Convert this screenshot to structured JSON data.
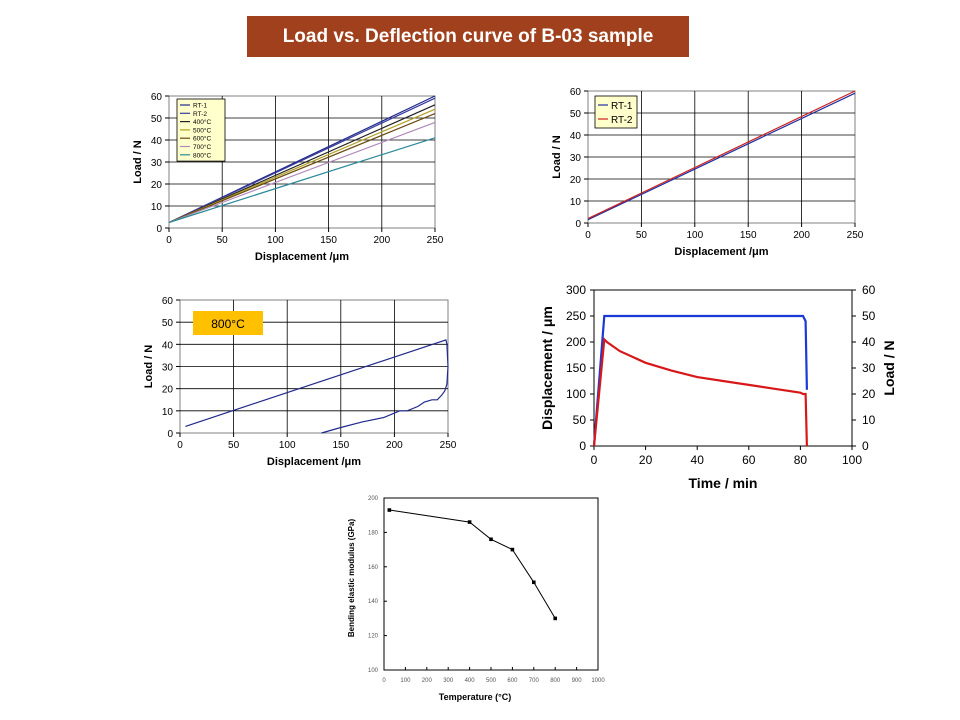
{
  "title": "Load vs. Deflection curve of B-03 sample",
  "chart_data": [
    {
      "id": "c1",
      "type": "line",
      "xlabel": "Displacement /μm",
      "ylabel": "Load / N",
      "xlim": [
        0,
        250
      ],
      "ylim": [
        0,
        60
      ],
      "xticks": [
        "0",
        "50",
        "100",
        "150",
        "200",
        "250"
      ],
      "yticks": [
        "0",
        "10",
        "20",
        "30",
        "40",
        "50",
        "60"
      ],
      "grid": true,
      "legend_position": "top-left",
      "series": [
        {
          "name": "RT-1",
          "color": "#1f2a8c",
          "x": [
            0,
            250
          ],
          "y": [
            2.5,
            60
          ]
        },
        {
          "name": "RT-2",
          "color": "#3b3b9c",
          "x": [
            0,
            250
          ],
          "y": [
            2.5,
            59
          ]
        },
        {
          "name": "400°C",
          "color": "#222222",
          "x": [
            0,
            250
          ],
          "y": [
            2.5,
            56
          ]
        },
        {
          "name": "500°C",
          "color": "#b0a020",
          "x": [
            0,
            250
          ],
          "y": [
            2.5,
            54
          ]
        },
        {
          "name": "600°C",
          "color": "#6b4a10",
          "x": [
            0,
            250
          ],
          "y": [
            2.5,
            52
          ]
        },
        {
          "name": "700°C",
          "color": "#b08ab8",
          "x": [
            0,
            250
          ],
          "y": [
            2.5,
            48
          ]
        },
        {
          "name": "800°C",
          "color": "#2a8a9a",
          "x": [
            0,
            250
          ],
          "y": [
            2.5,
            41
          ]
        }
      ]
    },
    {
      "id": "c2",
      "type": "line",
      "xlabel": "Displacement /μm",
      "ylabel": "Load / N",
      "xlim": [
        0,
        250
      ],
      "ylim": [
        0,
        60
      ],
      "xticks": [
        "0",
        "50",
        "100",
        "150",
        "200",
        "250"
      ],
      "yticks": [
        "0",
        "10",
        "20",
        "30",
        "40",
        "50",
        "60"
      ],
      "grid": true,
      "legend_position": "top-left",
      "series": [
        {
          "name": "RT-1",
          "color": "#2030a0",
          "x": [
            0,
            250
          ],
          "y": [
            1.5,
            59
          ]
        },
        {
          "name": "RT-2",
          "color": "#cc2020",
          "x": [
            0,
            250
          ],
          "y": [
            2,
            60
          ]
        }
      ]
    },
    {
      "id": "c3",
      "type": "line",
      "xlabel": "Displacement /μm",
      "ylabel": "Load / N",
      "xlim": [
        0,
        250
      ],
      "ylim": [
        0,
        60
      ],
      "xticks": [
        "0",
        "50",
        "100",
        "150",
        "200",
        "250"
      ],
      "yticks": [
        "0",
        "10",
        "20",
        "30",
        "40",
        "50",
        "60"
      ],
      "grid": true,
      "annotation": "800°C",
      "series": [
        {
          "color": "#1f2a8c",
          "x": [
            5,
            248,
            249,
            250,
            249,
            247,
            244,
            240,
            235,
            228,
            222,
            212,
            205,
            190,
            170,
            150,
            132
          ],
          "y": [
            3,
            42,
            40,
            30,
            22,
            19,
            17,
            15,
            15,
            14,
            12,
            10,
            10,
            7,
            5,
            2.5,
            0
          ]
        }
      ]
    },
    {
      "id": "c4",
      "type": "line",
      "xlabel": "Time / min",
      "ylabel": "Displacement / μm",
      "ylabel_right": "Load / N",
      "xlim": [
        0,
        100
      ],
      "ylim": [
        0,
        300
      ],
      "ylim_right": [
        0,
        60
      ],
      "xticks": [
        "0",
        "20",
        "40",
        "60",
        "80",
        "100"
      ],
      "yticks": [
        "0",
        "50",
        "100",
        "150",
        "200",
        "250",
        "300"
      ],
      "yticks_right": [
        "0",
        "10",
        "20",
        "30",
        "40",
        "50",
        "60"
      ],
      "grid": false,
      "series": [
        {
          "axis": "left",
          "color": "#1a3ad8",
          "x": [
            0,
            4,
            5,
            81,
            82,
            82.5
          ],
          "y": [
            0,
            250,
            250,
            250,
            240,
            108
          ]
        },
        {
          "axis": "right",
          "color": "#d81818",
          "x": [
            0,
            4,
            5,
            10,
            20,
            30,
            40,
            50,
            60,
            70,
            80,
            81,
            82,
            82.5
          ],
          "y": [
            0,
            41,
            40,
            36.5,
            32,
            29,
            26.5,
            25,
            23.5,
            22,
            20.5,
            20,
            20,
            0
          ]
        }
      ]
    },
    {
      "id": "c5",
      "type": "line",
      "xlabel": "Temperature (°C)",
      "ylabel": "Bending elastic modulus (GPa)",
      "xlim": [
        0,
        1000
      ],
      "ylim": [
        100,
        200
      ],
      "xticks": [
        "0",
        "100",
        "200",
        "300",
        "400",
        "500",
        "600",
        "700",
        "800",
        "900",
        "1000"
      ],
      "yticks": [
        "100",
        "120",
        "140",
        "160",
        "180",
        "200"
      ],
      "grid": false,
      "x": [
        25,
        400,
        500,
        600,
        700,
        800
      ],
      "y": [
        193,
        186,
        176,
        170,
        151,
        130
      ]
    }
  ]
}
